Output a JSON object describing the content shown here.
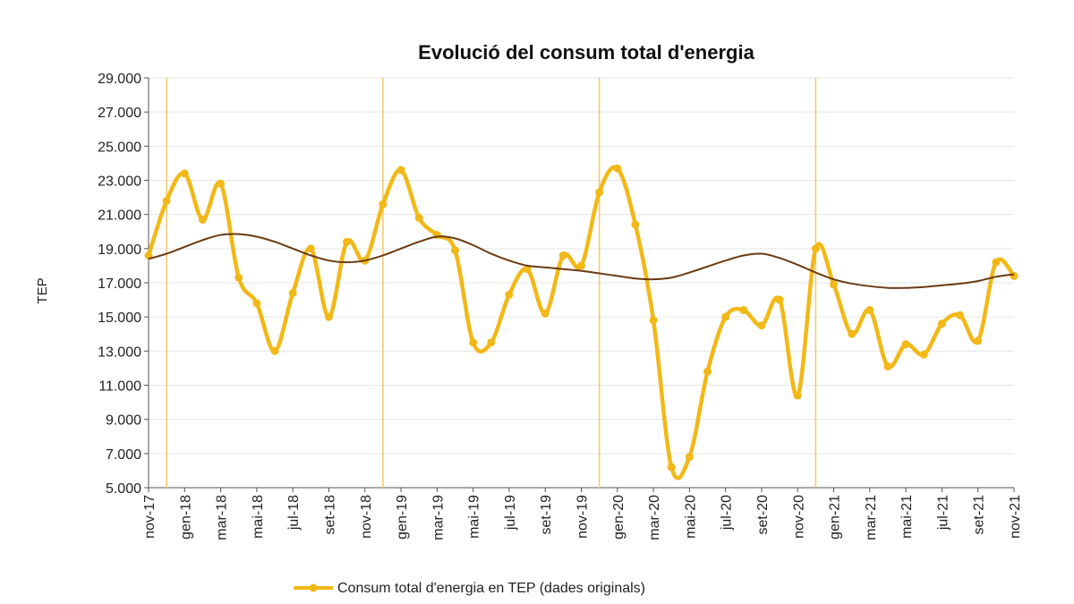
{
  "chart_data": {
    "type": "line",
    "title": "Evolució del consum total d'energia",
    "xlabel": "",
    "ylabel": "TEP",
    "ylim": [
      5000,
      29000
    ],
    "yticks": [
      "5.000",
      "7.000",
      "9.000",
      "11.000",
      "13.000",
      "15.000",
      "17.000",
      "19.000",
      "21.000",
      "23.000",
      "25.000",
      "27.000",
      "29.000"
    ],
    "grid": true,
    "legend_position": "bottom",
    "x": [
      "nov-17",
      "des-17",
      "gen-18",
      "feb-18",
      "mar-18",
      "abr-18",
      "mai-18",
      "jun-18",
      "jul-18",
      "ago-18",
      "set-18",
      "oct-18",
      "nov-18",
      "des-18",
      "gen-19",
      "feb-19",
      "mar-19",
      "abr-19",
      "mai-19",
      "jun-19",
      "jul-19",
      "ago-19",
      "set-19",
      "oct-19",
      "nov-19",
      "des-19",
      "gen-20",
      "feb-20",
      "mar-20",
      "abr-20",
      "mai-20",
      "jun-20",
      "jul-20",
      "ago-20",
      "set-20",
      "oct-20",
      "nov-20",
      "des-20",
      "gen-21",
      "feb-21",
      "mar-21",
      "abr-21",
      "mai-21",
      "jun-21",
      "jul-21",
      "ago-21",
      "set-21",
      "oct-21",
      "nov-21"
    ],
    "xtick_labels": [
      "nov-17",
      "gen-18",
      "mar-18",
      "mai-18",
      "jul-18",
      "set-18",
      "nov-18",
      "gen-19",
      "mar-19",
      "mai-19",
      "jul-19",
      "set-19",
      "nov-19",
      "gen-20",
      "mar-20",
      "mai-20",
      "jul-20",
      "set-20",
      "nov-20",
      "gen-21",
      "mar-21",
      "mai-21",
      "jul-21",
      "set-21",
      "nov-21"
    ],
    "year_separators": [
      "des-17",
      "des-18",
      "des-19",
      "des-20"
    ],
    "series": [
      {
        "name": "Consum total d'energia en TEP (dades originals)",
        "color": "#F2B817",
        "values": [
          18600,
          21800,
          23400,
          20700,
          22800,
          17300,
          15800,
          13000,
          16400,
          19000,
          15000,
          19400,
          18300,
          21600,
          23600,
          20800,
          19800,
          18900,
          13500,
          13500,
          16300,
          17800,
          15200,
          18600,
          18000,
          22300,
          23700,
          20400,
          14800,
          6200,
          6800,
          11800,
          15000,
          15400,
          14500,
          16000,
          10400,
          19000,
          16900,
          14000,
          15400,
          12100,
          13400,
          12800,
          14600,
          15100,
          13600,
          18200,
          17400
        ]
      },
      {
        "color": "#6B3A12",
        "values": [
          18400,
          18700,
          19100,
          19500,
          19800,
          19850,
          19700,
          19400,
          19000,
          18600,
          18300,
          18200,
          18300,
          18600,
          19000,
          19400,
          19700,
          19600,
          19200,
          18700,
          18300,
          18000,
          17900,
          17800,
          17700,
          17550,
          17400,
          17250,
          17200,
          17300,
          17600,
          17950,
          18300,
          18600,
          18700,
          18450,
          18050,
          17600,
          17200,
          16950,
          16800,
          16700,
          16700,
          16750,
          16850,
          16950,
          17100,
          17350,
          17500
        ]
      }
    ]
  }
}
